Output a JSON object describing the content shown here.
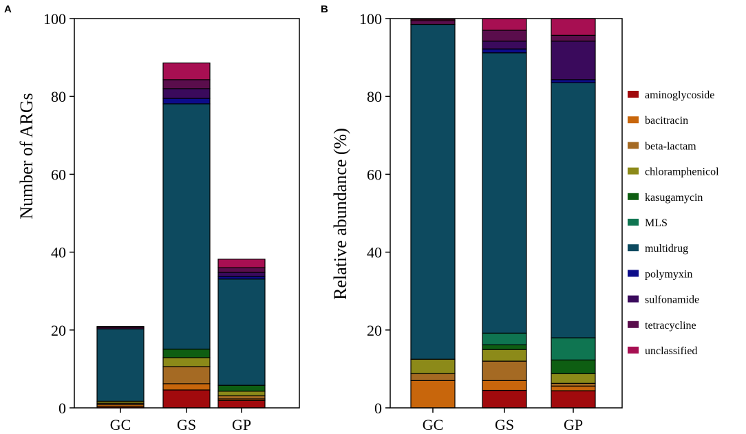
{
  "chart_data": [
    {
      "panel_label": "A",
      "type": "bar",
      "stacked": true,
      "title": "",
      "xlabel": "",
      "ylabel": "Number of ARGs",
      "ylim": [
        0,
        100
      ],
      "yticks": [
        0,
        20,
        40,
        60,
        80,
        100
      ],
      "categories": [
        "GC",
        "GS",
        "GP"
      ],
      "series": [
        {
          "name": "aminoglycoside",
          "values": [
            0.3,
            4.6,
            1.9
          ]
        },
        {
          "name": "bacitracin",
          "values": [
            0.5,
            1.6,
            0.4
          ]
        },
        {
          "name": "beta-lactam",
          "values": [
            0.4,
            4.4,
            0.8
          ]
        },
        {
          "name": "chloramphenicol",
          "values": [
            0.5,
            2.3,
            1.2
          ]
        },
        {
          "name": "kasugamycin",
          "values": [
            0.0,
            2.2,
            1.5
          ]
        },
        {
          "name": "MLS",
          "values": [
            0.0,
            0.0,
            0.0
          ]
        },
        {
          "name": "multidrug",
          "values": [
            18.6,
            63.0,
            27.3
          ]
        },
        {
          "name": "polymyxin",
          "values": [
            0.0,
            1.4,
            0.7
          ]
        },
        {
          "name": "sulfonamide",
          "values": [
            0.0,
            2.5,
            1.0
          ]
        },
        {
          "name": "tetracycline",
          "values": [
            0.4,
            2.3,
            1.2
          ]
        },
        {
          "name": "unclassified",
          "values": [
            0.2,
            4.3,
            2.2
          ]
        }
      ]
    },
    {
      "panel_label": "B",
      "type": "bar",
      "stacked": true,
      "title": "",
      "xlabel": "",
      "ylabel": "Relative abundance (%)",
      "ylim": [
        0,
        100
      ],
      "yticks": [
        0,
        20,
        40,
        60,
        80,
        100
      ],
      "categories": [
        "GC",
        "GS",
        "GP"
      ],
      "legend_position": "right",
      "series": [
        {
          "name": "aminoglycoside",
          "values": [
            0.0,
            4.5,
            4.4
          ]
        },
        {
          "name": "bacitracin",
          "values": [
            7.0,
            2.5,
            1.2
          ]
        },
        {
          "name": "beta-lactam",
          "values": [
            1.8,
            5.0,
            0.7
          ]
        },
        {
          "name": "chloramphenicol",
          "values": [
            3.7,
            3.0,
            2.5
          ]
        },
        {
          "name": "kasugamycin",
          "values": [
            0.0,
            1.2,
            3.5
          ]
        },
        {
          "name": "MLS",
          "values": [
            0.0,
            3.0,
            5.7
          ]
        },
        {
          "name": "multidrug",
          "values": [
            86.0,
            72.0,
            65.5
          ]
        },
        {
          "name": "polymyxin",
          "values": [
            0.0,
            1.0,
            0.8
          ]
        },
        {
          "name": "sulfonamide",
          "values": [
            0.0,
            2.0,
            9.9
          ]
        },
        {
          "name": "tetracycline",
          "values": [
            1.0,
            2.8,
            1.5
          ]
        },
        {
          "name": "unclassified",
          "values": [
            0.3,
            3.0,
            4.3
          ]
        }
      ]
    }
  ],
  "colors": {
    "aminoglycoside": "#a10a0d",
    "bacitracin": "#c8660c",
    "beta-lactam": "#a56a23",
    "chloramphenicol": "#8c8a19",
    "kasugamycin": "#0e5e12",
    "MLS": "#0f7551",
    "multidrug": "#0d4a5f",
    "polymyxin": "#0c0c8a",
    "sulfonamide": "#3a0a5c",
    "tetracycline": "#5a0d4c",
    "unclassified": "#a70f52"
  }
}
